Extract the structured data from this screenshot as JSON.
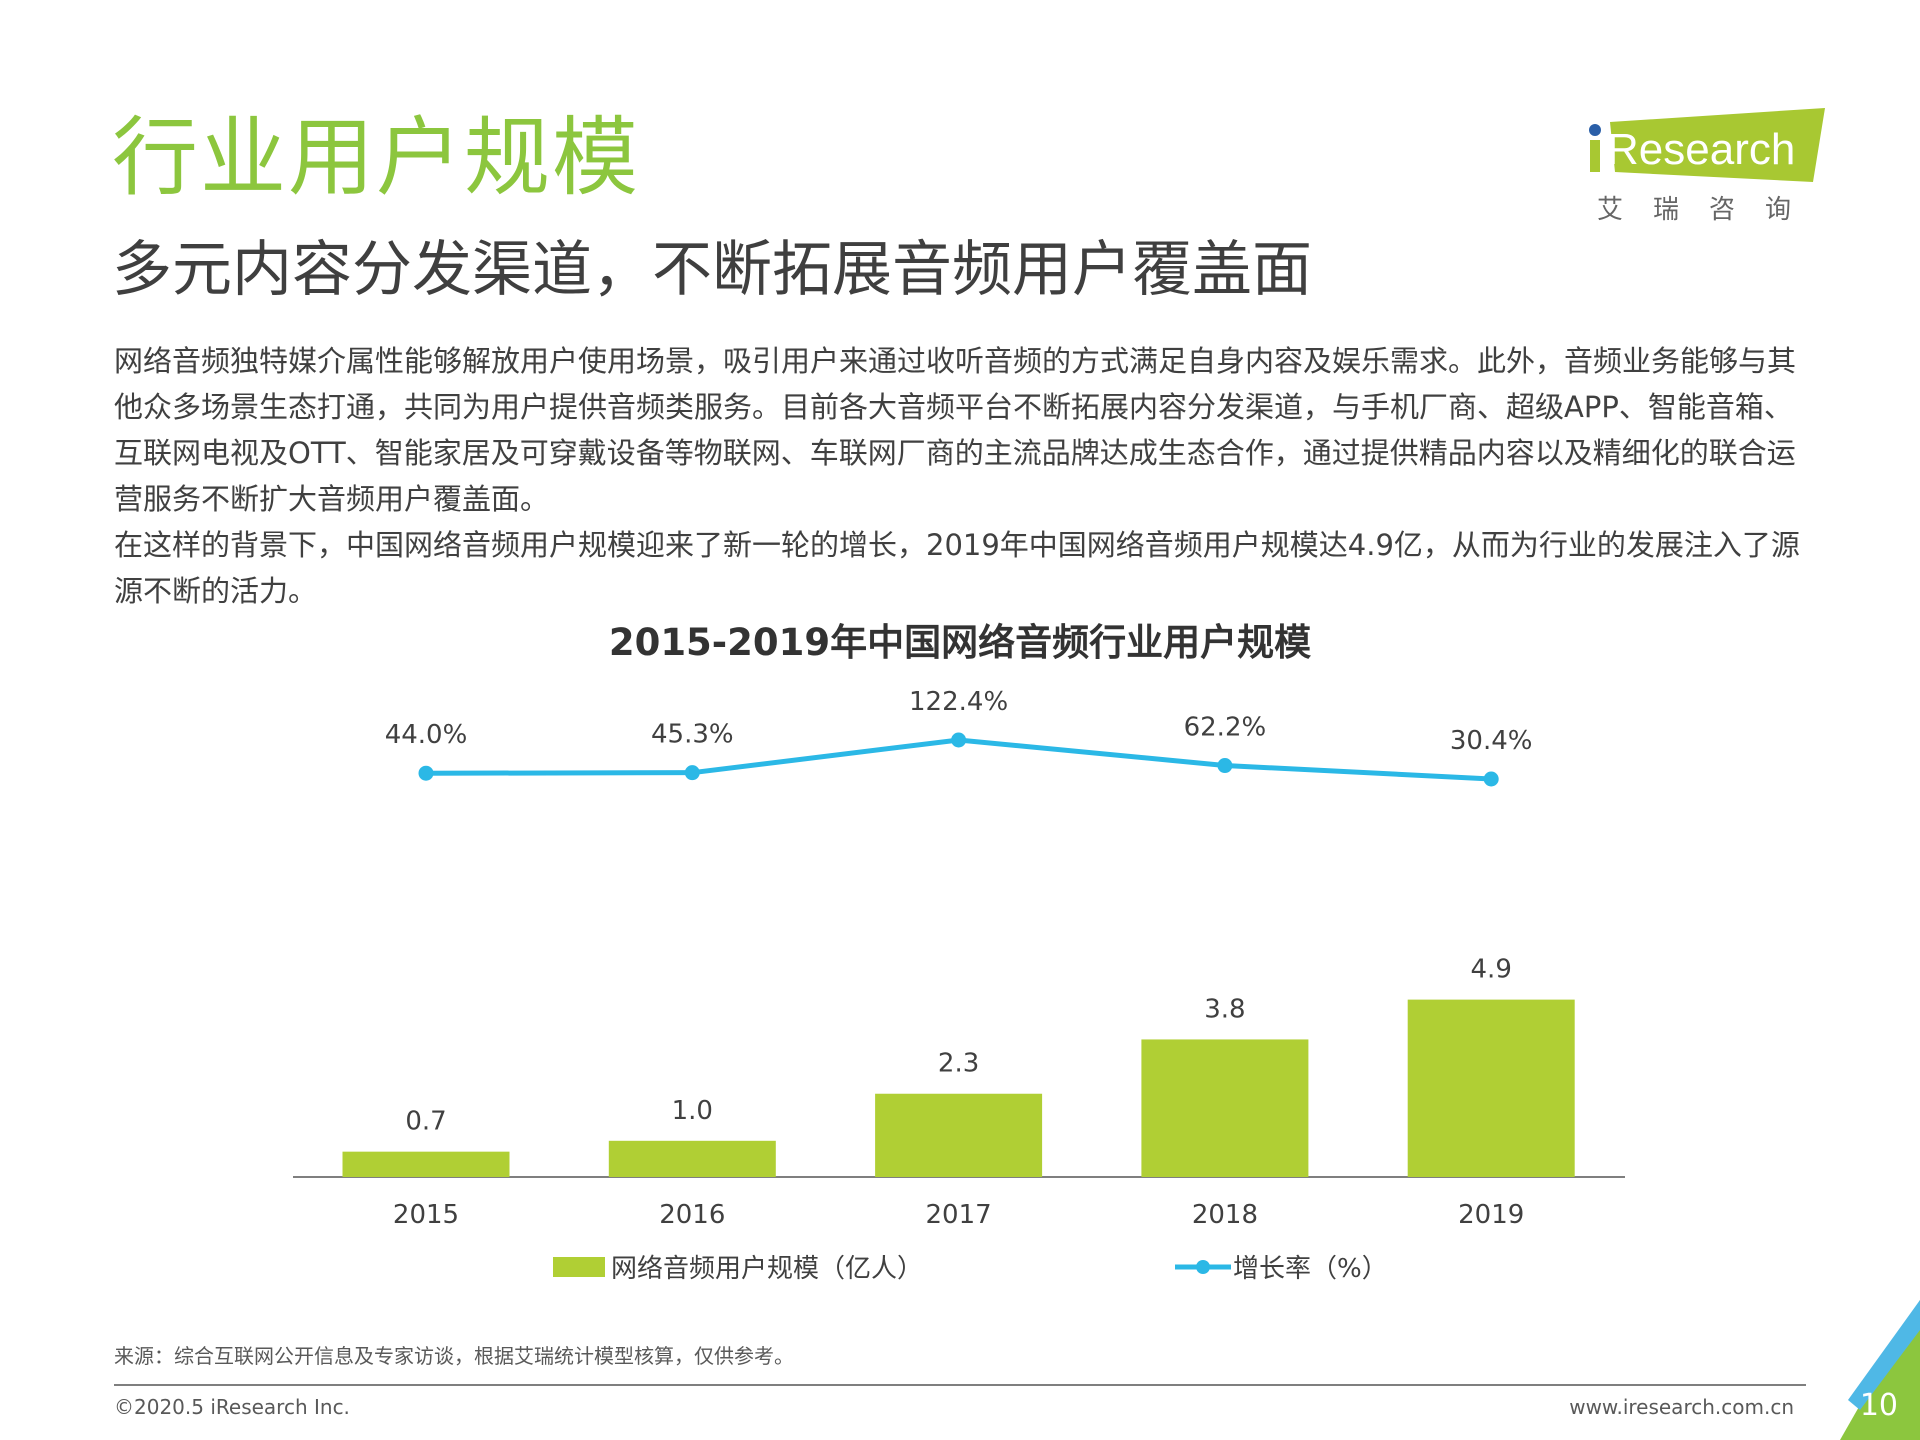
{
  "header": {
    "title": "行业用户规模",
    "subtitle": "多元内容分发渠道，不断拓展音频用户覆盖面",
    "logo_text": "iResearch",
    "logo_cn": "艾 瑞 咨 询"
  },
  "body": {
    "paragraphs": [
      "网络音频独特媒介属性能够解放用户使用场景，吸引用户来通过收听音频的方式满足自身内容及娱乐需求。此外，音频业务能够与其他众多场景生态打通，共同为用户提供音频类服务。目前各大音频平台不断拓展内容分发渠道，与手机厂商、超级APP、智能音箱、互联网电视及OTT、智能家居及可穿戴设备等物联网、车联网厂商的主流品牌达成生态合作，通过提供精品内容以及精细化的联合运营服务不断扩大音频用户覆盖面。",
      "在这样的背景下，中国网络音频用户规模迎来了新一轮的增长，2019年中国网络音频用户规模达4.9亿，从而为行业的发展注入了源源不断的活力。"
    ]
  },
  "chart_data": {
    "type": "bar+line",
    "title": "2015-2019年中国网络音频行业用户规模",
    "categories": [
      "2015",
      "2016",
      "2017",
      "2018",
      "2019"
    ],
    "series": [
      {
        "name": "网络音频用户规模（亿人）",
        "type": "bar",
        "values": [
          0.7,
          1.0,
          2.3,
          3.8,
          4.9
        ],
        "labels": [
          "0.7",
          "1.0",
          "2.3",
          "3.8",
          "4.9"
        ],
        "color": "#b0cf34"
      },
      {
        "name": "增长率（%）",
        "type": "line",
        "values": [
          44.0,
          45.3,
          122.4,
          62.2,
          30.4
        ],
        "labels": [
          "44.0%",
          "45.3%",
          "122.4%",
          "62.2%",
          "30.4%"
        ],
        "color": "#2bb8e6"
      }
    ],
    "legend_position": "bottom",
    "grid": false
  },
  "footer": {
    "source": "来源：综合互联网公开信息及专家访谈，根据艾瑞统计模型核算，仅供参考。",
    "copyright": "©2020.5 iResearch Inc.",
    "url": "www.iresearch.com.cn",
    "page_number": "10"
  },
  "colors": {
    "accent_green": "#8cc63e",
    "accent_blue": "#2bb8e6"
  }
}
